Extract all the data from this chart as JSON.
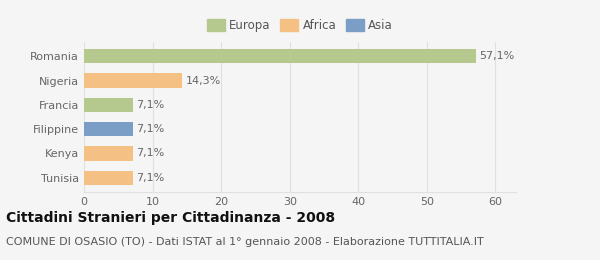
{
  "categories": [
    "Romania",
    "Nigeria",
    "Francia",
    "Filippine",
    "Kenya",
    "Tunisia"
  ],
  "values": [
    57.1,
    14.3,
    7.1,
    7.1,
    7.1,
    7.1
  ],
  "labels": [
    "57,1%",
    "14,3%",
    "7,1%",
    "7,1%",
    "7,1%",
    "7,1%"
  ],
  "colors": [
    "#b5c98e",
    "#f5c083",
    "#b5c98e",
    "#7b9ec7",
    "#f5c083",
    "#f5c083"
  ],
  "legend_items": [
    {
      "label": "Europa",
      "color": "#b5c98e"
    },
    {
      "label": "Africa",
      "color": "#f5c083"
    },
    {
      "label": "Asia",
      "color": "#7b9ec7"
    }
  ],
  "xlim": [
    0,
    63
  ],
  "xticks": [
    0,
    10,
    20,
    30,
    40,
    50,
    60
  ],
  "title": "Cittadini Stranieri per Cittadinanza - 2008",
  "subtitle": "COMUNE DI OSASIO (TO) - Dati ISTAT al 1° gennaio 2008 - Elaborazione TUTTITALIA.IT",
  "background_color": "#f5f5f5",
  "grid_color": "#e0e0e0",
  "bar_height": 0.6,
  "title_fontsize": 10,
  "subtitle_fontsize": 8,
  "label_fontsize": 8,
  "tick_fontsize": 8,
  "legend_fontsize": 8.5
}
